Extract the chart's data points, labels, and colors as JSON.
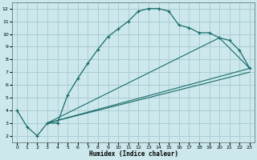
{
  "xlabel": "Humidex (Indice chaleur)",
  "bg_color": "#cce8ec",
  "grid_color": "#aacdd4",
  "line_color": "#1a6b6b",
  "xlim": [
    -0.5,
    23.5
  ],
  "ylim": [
    1.5,
    12.5
  ],
  "xticks": [
    0,
    1,
    2,
    3,
    4,
    5,
    6,
    7,
    8,
    9,
    10,
    11,
    12,
    13,
    14,
    15,
    16,
    17,
    18,
    19,
    20,
    21,
    22,
    23
  ],
  "yticks": [
    2,
    3,
    4,
    5,
    6,
    7,
    8,
    9,
    10,
    11,
    12
  ],
  "line1_x": [
    0,
    1,
    2,
    3,
    4,
    5,
    6,
    7,
    8,
    9,
    10,
    11,
    12,
    13,
    14,
    15,
    16,
    17,
    18,
    19,
    20,
    21,
    22,
    23
  ],
  "line1_y": [
    4.0,
    2.7,
    2.0,
    3.0,
    3.0,
    5.2,
    6.5,
    7.7,
    8.8,
    9.8,
    10.4,
    11.0,
    11.8,
    12.0,
    12.0,
    11.8,
    10.7,
    10.5,
    10.1,
    10.1,
    9.7,
    9.5,
    8.7,
    7.3
  ],
  "line2_x": [
    3,
    20,
    23
  ],
  "line2_y": [
    3.0,
    9.7,
    7.3
  ],
  "line3_x": [
    3,
    23
  ],
  "line3_y": [
    3.0,
    7.3
  ],
  "line4_x": [
    3,
    23
  ],
  "line4_y": [
    3.0,
    7.0
  ]
}
